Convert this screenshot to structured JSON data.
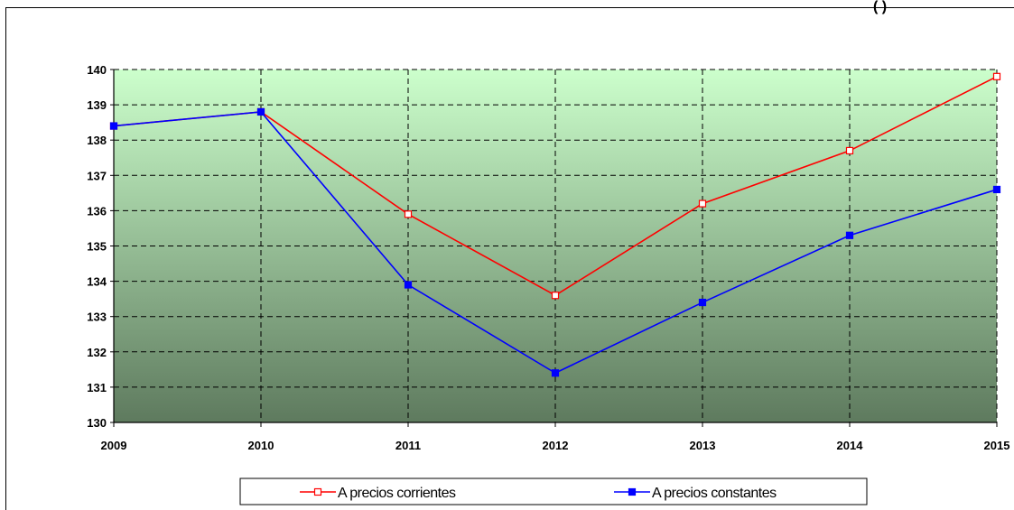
{
  "header": {
    "corner_text": "(                )"
  },
  "chart_data": {
    "type": "line",
    "categories": [
      "2009",
      "2010",
      "2011",
      "2012",
      "2013",
      "2014",
      "2015"
    ],
    "ylim": [
      130,
      140
    ],
    "yticks": [
      130,
      131,
      132,
      133,
      134,
      135,
      136,
      137,
      138,
      139,
      140
    ],
    "grid": true,
    "legend_position": "bottom",
    "series": [
      {
        "name": "A precios corrientes",
        "color": "#ff0000",
        "marker": "hollow-square",
        "values": [
          138.4,
          138.8,
          135.9,
          133.6,
          136.2,
          137.7,
          139.8
        ]
      },
      {
        "name": "A precios constantes",
        "color": "#0000ff",
        "marker": "filled-square",
        "values": [
          138.4,
          138.8,
          133.9,
          131.4,
          133.4,
          135.3,
          136.6
        ]
      }
    ]
  },
  "colors": {
    "gradient_top": "#ccffcc",
    "gradient_bottom": "#5e7a5e",
    "grid": "#000000"
  }
}
